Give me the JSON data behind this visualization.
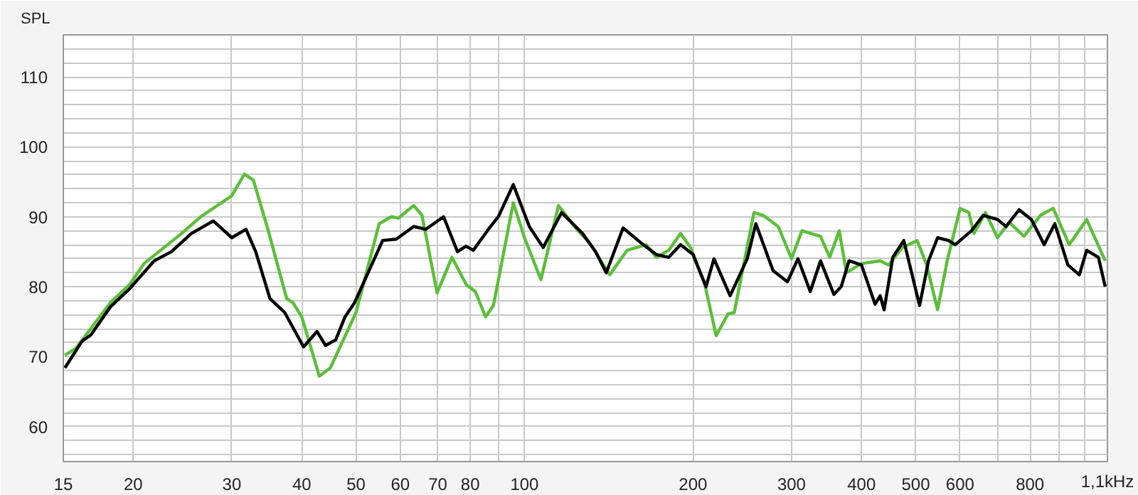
{
  "chart_data": {
    "type": "line",
    "ylabel": "SPL",
    "log": "x",
    "grid": true,
    "line_style": "solid",
    "marker": "none",
    "xlim": [
      15,
      1100
    ],
    "ylim": [
      55,
      116
    ],
    "xticks": [
      15,
      20,
      30,
      40,
      50,
      60,
      70,
      80,
      {
        "value": 90,
        "label": null
      },
      100,
      200,
      300,
      400,
      500,
      600,
      {
        "value": 700,
        "label": null
      },
      800,
      {
        "value": 900,
        "label": null
      },
      {
        "value": 1000,
        "label": null
      }
    ],
    "xlabel": "1,1kHz",
    "yticks": [
      {
        "value": 56,
        "label": null
      },
      {
        "value": 58,
        "label": null
      },
      60,
      {
        "value": 62,
        "label": null
      },
      {
        "value": 64,
        "label": null
      },
      {
        "value": 66,
        "label": null
      },
      {
        "value": 68,
        "label": null
      },
      70,
      {
        "value": 72,
        "label": null
      },
      {
        "value": 74,
        "label": null
      },
      {
        "value": 76,
        "label": null
      },
      {
        "value": 78,
        "label": null
      },
      80,
      {
        "value": 82,
        "label": null
      },
      {
        "value": 84,
        "label": null
      },
      {
        "value": 86,
        "label": null
      },
      {
        "value": 88,
        "label": null
      },
      90,
      {
        "value": 92,
        "label": null
      },
      {
        "value": 94,
        "label": null
      },
      {
        "value": 96,
        "label": null
      },
      {
        "value": 98,
        "label": null
      },
      100,
      {
        "value": 102,
        "label": null
      },
      {
        "value": 104,
        "label": null
      },
      {
        "value": 106,
        "label": null
      },
      {
        "value": 108,
        "label": null
      },
      110,
      {
        "value": 112,
        "label": null
      },
      {
        "value": 114,
        "label": null
      }
    ],
    "series": [
      {
        "color": "#5abf38",
        "x": [
          15.1,
          15.8,
          17.2,
          18.2,
          19.7,
          20.9,
          24.4,
          26.4,
          30,
          31.6,
          32.8,
          34.8,
          37.6,
          38.6,
          40,
          43,
          45,
          50,
          55,
          57.8,
          59.5,
          63.4,
          65.6,
          69.8,
          74.2,
          78.7,
          81.7,
          85.2,
          88,
          95.5,
          100,
          107,
          115,
          124,
          131,
          142,
          152.5,
          165,
          172,
          181,
          190,
          198,
          210,
          220,
          231,
          237,
          257,
          267,
          284,
          300,
          313,
          338,
          351,
          365,
          376,
          400,
          432,
          447,
          473,
          503,
          523,
          547,
          569,
          600,
          622,
          635,
          666,
          700,
          735,
          780,
          835,
          880,
          940,
          1010,
          1090
        ],
        "values": [
          70.2,
          71.2,
          75.1,
          77.7,
          80.3,
          83.3,
          87.6,
          90,
          93,
          96.1,
          95.2,
          88.2,
          78.3,
          77.7,
          75.7,
          67.2,
          68.4,
          76.3,
          89,
          90,
          89.8,
          91.6,
          90.2,
          79.1,
          84.2,
          80.3,
          79.3,
          75.7,
          77.3,
          92,
          87,
          81,
          91.6,
          88.2,
          86.2,
          81.7,
          85.2,
          86,
          84.2,
          85.2,
          87.6,
          85.6,
          80.3,
          73,
          76.1,
          76.3,
          90.6,
          90.2,
          88.6,
          84,
          88,
          87.2,
          84.2,
          88,
          82,
          83.3,
          83.7,
          83.1,
          85.6,
          86.6,
          83.1,
          76.7,
          83.7,
          91.2,
          90.6,
          87.6,
          90.6,
          87,
          89.2,
          87.2,
          90.2,
          91.2,
          86,
          89.6,
          83.7
        ]
      },
      {
        "color": "#000000",
        "x": [
          15.1,
          16.2,
          16.8,
          18.2,
          19.7,
          21.8,
          23.4,
          25.4,
          27.8,
          30,
          31.8,
          33.1,
          35.1,
          37.3,
          40.3,
          42.6,
          44.1,
          46,
          47.8,
          49.7,
          55.8,
          59,
          63.4,
          66.6,
          71.7,
          75.9,
          78.6,
          81,
          86.2,
          89.8,
          95.5,
          102,
          108,
          116.5,
          127,
          134,
          140,
          150,
          163,
          172,
          181,
          190,
          200,
          211,
          218,
          233,
          250,
          259,
          278,
          295,
          308,
          324,
          338,
          357,
          368,
          380,
          400,
          423,
          432,
          439,
          455,
          476,
          508,
          527,
          547,
          572,
          588,
          629,
          660,
          700,
          725,
          765,
          805,
          848,
          886,
          935,
          980,
          1010,
          1060,
          1090
        ],
        "values": [
          68.4,
          72.2,
          73.1,
          77.1,
          79.7,
          83.7,
          85,
          87.6,
          89.4,
          87,
          88.2,
          85,
          78.3,
          76.3,
          71.4,
          73.6,
          71.6,
          72.4,
          75.7,
          77.7,
          86.6,
          86.8,
          88.6,
          88.2,
          90,
          85,
          85.8,
          85.2,
          88.2,
          90,
          94.6,
          88.6,
          85.6,
          90.6,
          87.6,
          85,
          82,
          88.4,
          86,
          84.6,
          84.2,
          86,
          84.6,
          80,
          84,
          78.7,
          84,
          89,
          82.3,
          80.7,
          84,
          79.3,
          83.7,
          78.9,
          80,
          83.7,
          83.1,
          77.5,
          78.7,
          76.7,
          84.2,
          86.6,
          77.3,
          83.7,
          87,
          86.6,
          86,
          88,
          90.2,
          89.6,
          88.6,
          91,
          89.6,
          86,
          89,
          83.1,
          81.7,
          85.2,
          84.2,
          80
        ]
      }
    ]
  }
}
